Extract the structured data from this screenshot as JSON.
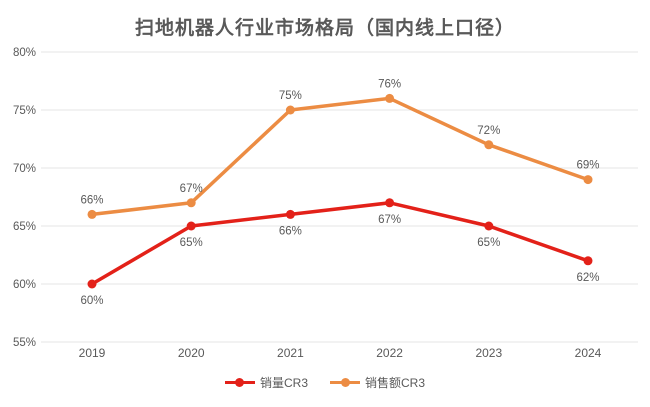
{
  "chart_data": {
    "type": "line",
    "title": "扫地机器人行业市场格局（国内线上口径）",
    "categories": [
      "2019",
      "2020",
      "2021",
      "2022",
      "2023",
      "2024"
    ],
    "series": [
      {
        "name": "销量CR3",
        "color": "#e32119",
        "values": [
          60,
          65,
          66,
          67,
          65,
          62
        ],
        "data_labels": [
          "60%",
          "65%",
          "66%",
          "67%",
          "65%",
          "62%"
        ],
        "label_position": "below"
      },
      {
        "name": "销售额CR3",
        "color": "#ec8c43",
        "values": [
          66,
          67,
          75,
          76,
          72,
          69
        ],
        "data_labels": [
          "66%",
          "67%",
          "75%",
          "76%",
          "72%",
          "69%"
        ],
        "label_position": "above"
      }
    ],
    "ylim": [
      55,
      80
    ],
    "ytick_step": 5,
    "ytick_labels": [
      "55%",
      "60%",
      "65%",
      "70%",
      "75%",
      "80%"
    ],
    "xlabel": "",
    "ylabel": "",
    "grid": true,
    "legend_position": "bottom",
    "colors": {
      "grid": "#e4e4e4",
      "axis_text": "#595959",
      "data_label_text": "#595959",
      "background": "#ffffff"
    }
  }
}
